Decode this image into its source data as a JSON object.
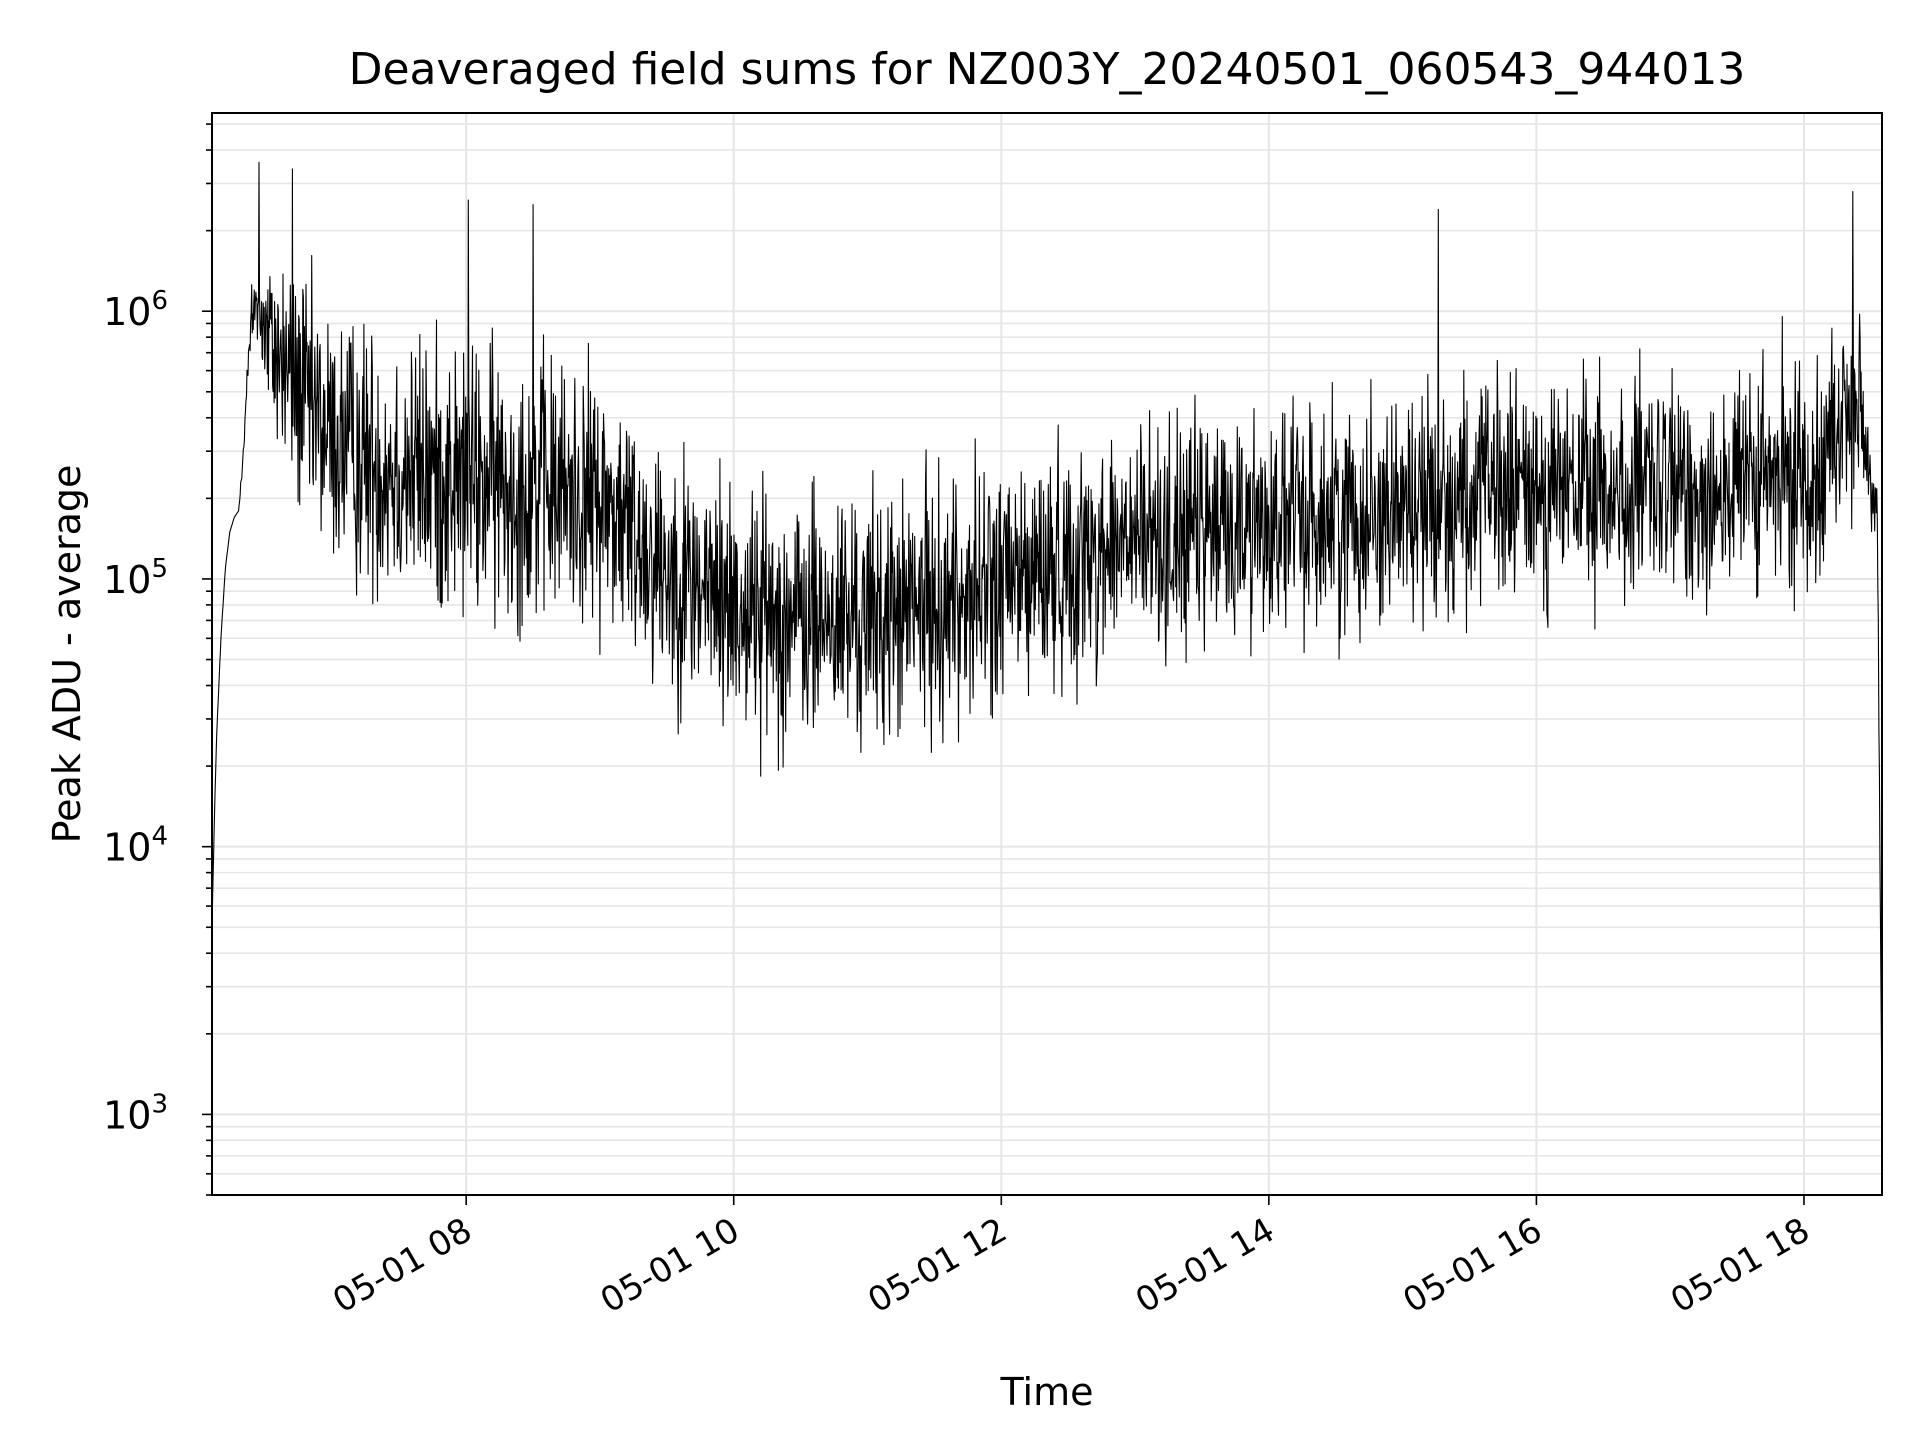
{
  "chart_data": {
    "type": "line",
    "title": "Deaveraged field sums for NZ003Y_20240501_060543_944013",
    "xlabel": "Time",
    "ylabel": "Peak ADU - average",
    "y_scale": "log",
    "xlim": [
      "2024-05-01 06:06",
      "2024-05-01 18:35"
    ],
    "ylim": [
      500,
      5500000
    ],
    "x_ticks": [
      "05-01 08",
      "05-01 10",
      "05-01 12",
      "05-01 14",
      "05-01 16",
      "05-01 18"
    ],
    "y_ticks": [
      {
        "base": "10",
        "exp": "3"
      },
      {
        "base": "10",
        "exp": "4"
      },
      {
        "base": "10",
        "exp": "5"
      },
      {
        "base": "10",
        "exp": "6"
      }
    ],
    "grid": true,
    "line_color": "#000000",
    "grid_color": "#e6e6e6",
    "series": [
      {
        "x": [
          "2024-05-01 06:06",
          "2024-05-01 06:07",
          "2024-05-01 06:08",
          "2024-05-01 06:10",
          "2024-05-01 06:12",
          "2024-05-01 06:14",
          "2024-05-01 06:16",
          "2024-05-01 06:18",
          "2024-05-01 06:20",
          "2024-05-01 06:22",
          "2024-05-01 06:24",
          "2024-05-01 06:26",
          "2024-05-01 06:28",
          "2024-05-01 06:30",
          "2024-05-01 06:35",
          "2024-05-01 06:40",
          "2024-05-01 06:45",
          "2024-05-01 06:50",
          "2024-05-01 07:00",
          "2024-05-01 07:15",
          "2024-05-01 07:30",
          "2024-05-01 08:00",
          "2024-05-01 08:30",
          "2024-05-01 09:00",
          "2024-05-01 09:30",
          "2024-05-01 10:00",
          "2024-05-01 10:30",
          "2024-05-01 11:00",
          "2024-05-01 11:30",
          "2024-05-01 12:00",
          "2024-05-01 12:30",
          "2024-05-01 13:00",
          "2024-05-01 13:30",
          "2024-05-01 14:00",
          "2024-05-01 14:30",
          "2024-05-01 15:00",
          "2024-05-01 15:30",
          "2024-05-01 16:00",
          "2024-05-01 16:30",
          "2024-05-01 17:00",
          "2024-05-01 17:30",
          "2024-05-01 18:00",
          "2024-05-01 18:15",
          "2024-05-01 18:20",
          "2024-05-01 18:25",
          "2024-05-01 18:30",
          "2024-05-01 18:33",
          "2024-05-01 18:35"
        ],
        "y": [
          5000,
          12000,
          25000,
          60000,
          110000,
          150000,
          170000,
          180000,
          300000,
          600000,
          900000,
          1200000,
          1000000,
          800000,
          700000,
          600000,
          500000,
          420000,
          330000,
          280000,
          260000,
          230000,
          220000,
          200000,
          110000,
          80000,
          70000,
          70000,
          80000,
          95000,
          115000,
          140000,
          150000,
          165000,
          170000,
          190000,
          200000,
          220000,
          210000,
          210000,
          220000,
          240000,
          350000,
          450000,
          450000,
          200000,
          150000,
          900
        ],
        "noise_amp_log10": [
          0,
          0,
          0,
          0,
          0,
          0,
          0,
          0,
          0.05,
          0.1,
          0.25,
          0.3,
          0.3,
          0.35,
          0.5,
          0.55,
          0.6,
          0.6,
          0.6,
          0.65,
          0.65,
          0.65,
          0.65,
          0.6,
          0.6,
          0.6,
          0.6,
          0.6,
          0.6,
          0.6,
          0.55,
          0.55,
          0.55,
          0.55,
          0.55,
          0.55,
          0.55,
          0.55,
          0.55,
          0.55,
          0.55,
          0.55,
          0.5,
          0.5,
          0.4,
          0.2,
          0.2,
          0
        ],
        "points": 3200,
        "peaks": [
          {
            "x": "2024-05-01 06:27",
            "y": 3600000
          },
          {
            "x": "2024-05-01 06:42",
            "y": 3400000
          },
          {
            "x": "2024-05-01 08:01",
            "y": 2600000
          },
          {
            "x": "2024-05-01 08:30",
            "y": 2500000
          },
          {
            "x": "2024-05-01 15:16",
            "y": 2400000
          },
          {
            "x": "2024-05-01 18:22",
            "y": 2800000
          }
        ]
      }
    ]
  }
}
